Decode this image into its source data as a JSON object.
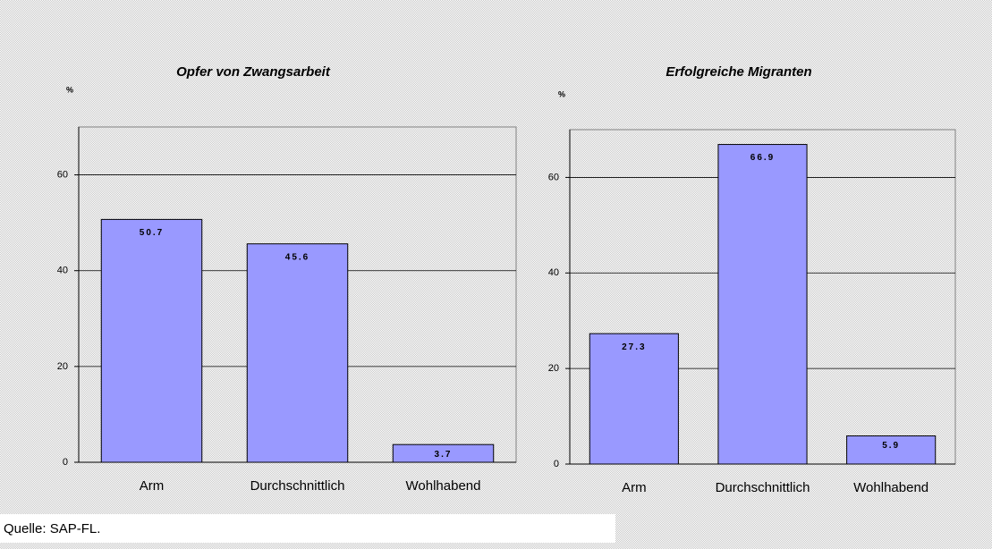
{
  "chart_data": [
    {
      "type": "bar",
      "title": "Opfer von Zwangsarbeit",
      "y_label": "%",
      "categories": [
        "Arm",
        "Durchschnittlich",
        "Wohlhabend"
      ],
      "values": [
        50.7,
        45.6,
        3.7
      ],
      "color": "#9999ff",
      "ylim": [
        0,
        70
      ],
      "yticks": [
        0,
        20,
        40,
        60
      ],
      "grid": true
    },
    {
      "type": "bar",
      "title": "Erfolgreiche Migranten",
      "y_label": "%",
      "categories": [
        "Arm",
        "Durchschnittlich",
        "Wohlhabend"
      ],
      "values": [
        27.3,
        66.9,
        5.9
      ],
      "color": "#9999ff",
      "ylim": [
        0,
        70
      ],
      "yticks": [
        0,
        20,
        40,
        60
      ],
      "grid": true
    }
  ],
  "source": "Quelle: SAP-FL."
}
